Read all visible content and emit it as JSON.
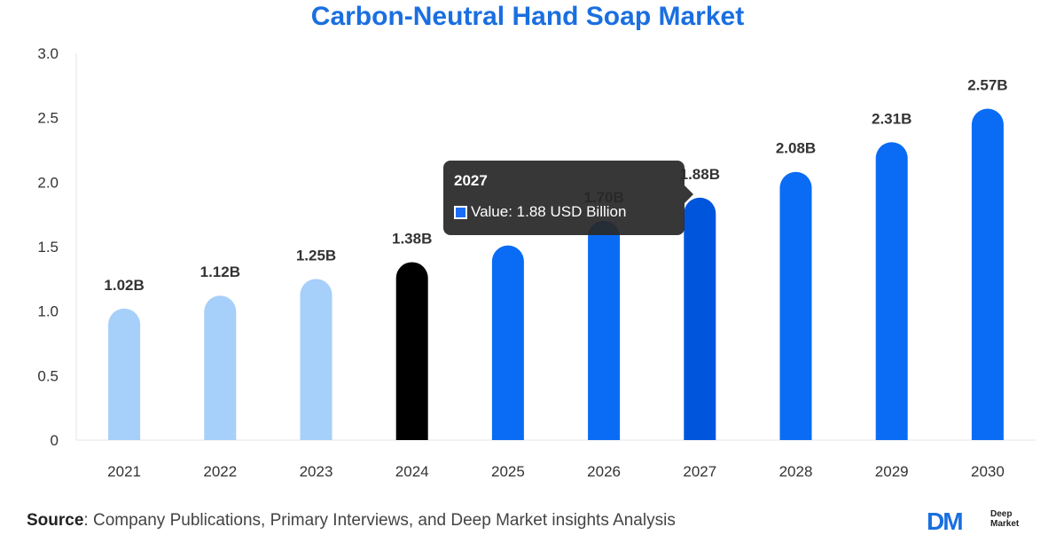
{
  "chart_data": {
    "type": "bar",
    "title": "Carbon-Neutral Hand Soap Market",
    "categories": [
      "2021",
      "2022",
      "2023",
      "2024",
      "2025",
      "2026",
      "2027",
      "2028",
      "2029",
      "2030"
    ],
    "values": [
      1.02,
      1.12,
      1.25,
      1.38,
      1.51,
      1.7,
      1.88,
      2.08,
      2.31,
      2.57
    ],
    "value_labels": [
      "1.02B",
      "1.12B",
      "1.25B",
      "1.38B",
      "",
      "1.70B",
      "1.88B",
      "2.08B",
      "2.31B",
      "2.57B"
    ],
    "bar_colors": [
      "#a6cffa",
      "#a6cffa",
      "#a6cffa",
      "#000000",
      "#0a6cf5",
      "#0a6cf5",
      "#0055dd",
      "#0a6cf5",
      "#0a6cf5",
      "#0a6cf5"
    ],
    "yticks": [
      "0",
      "0.5",
      "1.0",
      "1.5",
      "2.0",
      "2.5",
      "3.0"
    ],
    "ylim": [
      0,
      3.0
    ],
    "xlabel": "",
    "ylabel": "",
    "grid": false
  },
  "tooltip": {
    "title": "2027",
    "text": "Value: 1.88 USD Billion",
    "swatch_color": "#1a6ef5"
  },
  "source": {
    "label": "Source",
    "text": ": Company Publications, Primary Interviews, and Deep Market insights Analysis"
  },
  "logo": {
    "mark": "DM",
    "line1": "Deep",
    "line2": "Market"
  }
}
